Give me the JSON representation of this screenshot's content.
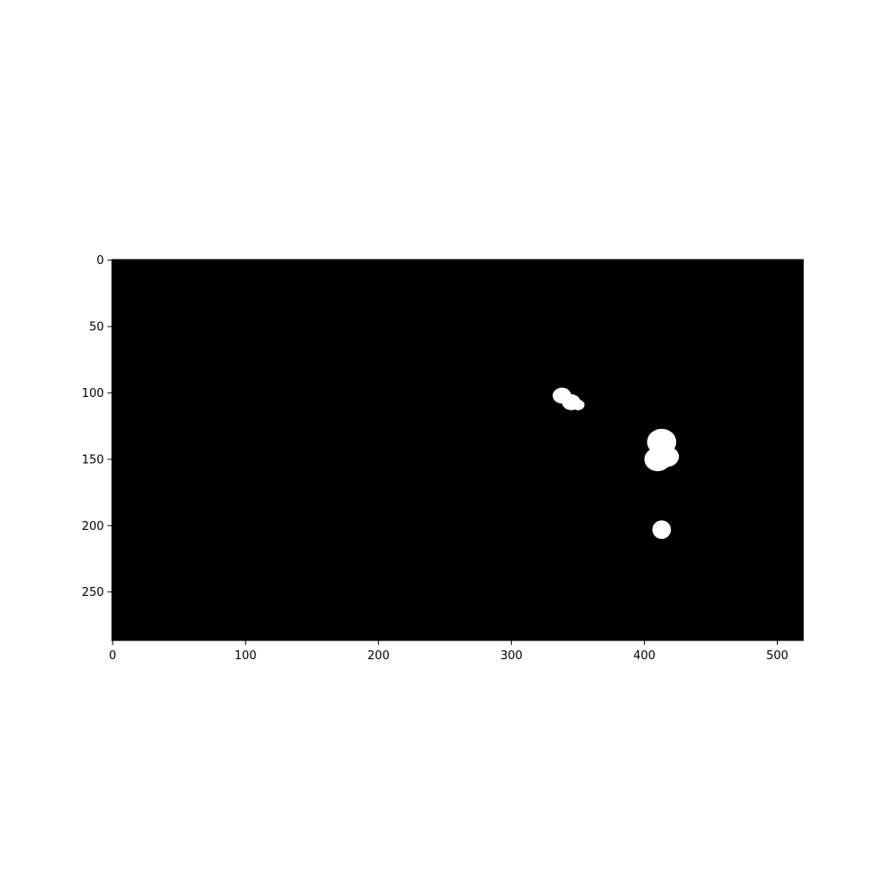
{
  "chart_data": {
    "type": "heatmap",
    "description_values": "binary mask image",
    "image_shape": [
      287,
      520
    ],
    "xlim": [
      -0.5,
      519.5
    ],
    "ylim": [
      286.5,
      -0.5
    ],
    "x_ticks": [
      0,
      100,
      200,
      300,
      400,
      500
    ],
    "y_ticks": [
      0,
      50,
      100,
      150,
      200,
      250
    ],
    "x_tick_labels": [
      "0",
      "100",
      "200",
      "300",
      "400",
      "500"
    ],
    "y_tick_labels": [
      "0",
      "50",
      "100",
      "150",
      "200",
      "250"
    ],
    "background_value": 0,
    "foreground_value": 1,
    "colors": {
      "background": "#000000",
      "foreground": "#ffffff",
      "frame": "#000000"
    },
    "blobs": [
      {
        "name": "blob-1",
        "parts": [
          {
            "cx": 338,
            "cy": 102,
            "rx": 7,
            "ry": 6
          },
          {
            "cx": 345,
            "cy": 107,
            "rx": 7,
            "ry": 6
          },
          {
            "cx": 350,
            "cy": 109,
            "rx": 5,
            "ry": 4
          }
        ]
      },
      {
        "name": "blob-2",
        "parts": [
          {
            "cx": 413,
            "cy": 137,
            "rx": 11,
            "ry": 10
          },
          {
            "cx": 410,
            "cy": 150,
            "rx": 10,
            "ry": 9
          },
          {
            "cx": 416,
            "cy": 148,
            "rx": 10,
            "ry": 8
          }
        ]
      },
      {
        "name": "blob-3",
        "parts": [
          {
            "cx": 413,
            "cy": 203,
            "rx": 7,
            "ry": 7
          }
        ]
      }
    ]
  }
}
